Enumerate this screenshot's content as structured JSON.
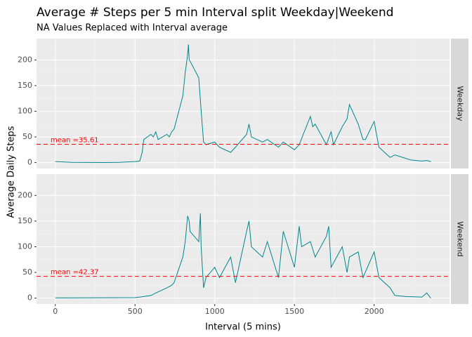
{
  "chart_data": {
    "type": "line",
    "title": "Average # Steps per 5 min Interval split Weekday|Weekend",
    "subtitle": "NA Values Replaced with Interval average",
    "xlabel": "Interval (5 mins)",
    "ylabel": "Average Daily Steps",
    "xlim": [
      -117.75,
      2472.75
    ],
    "ylim": [
      -11.5,
      241.5
    ],
    "xticks": [
      0,
      500,
      1000,
      1500,
      2000
    ],
    "yticks": [
      0,
      50,
      100,
      150,
      200
    ],
    "x_minor": [
      250,
      750,
      1250,
      1750,
      2250
    ],
    "y_minor": [
      25,
      75,
      125,
      175,
      225
    ],
    "grid": true,
    "panels": [
      {
        "strip": "Weekday",
        "color": "#00868b",
        "x": [
          0,
          100,
          200,
          300,
          400,
          500,
          530,
          545,
          555,
          600,
          615,
          630,
          645,
          700,
          715,
          730,
          745,
          800,
          815,
          830,
          835,
          840,
          850,
          900,
          915,
          930,
          945,
          1000,
          1030,
          1100,
          1130,
          1200,
          1215,
          1230,
          1300,
          1330,
          1400,
          1430,
          1500,
          1530,
          1600,
          1615,
          1630,
          1700,
          1730,
          1745,
          1800,
          1830,
          1845,
          1900,
          1930,
          1945,
          2000,
          2030,
          2100,
          2130,
          2200,
          2230,
          2300,
          2330,
          2355
        ],
        "values": [
          2,
          0.5,
          0.3,
          0.2,
          0.5,
          2,
          3,
          20,
          45,
          55,
          50,
          60,
          45,
          55,
          50,
          60,
          65,
          130,
          175,
          210,
          230,
          200,
          195,
          165,
          100,
          40,
          35,
          40,
          30,
          20,
          30,
          55,
          75,
          50,
          40,
          45,
          30,
          40,
          25,
          35,
          90,
          70,
          75,
          35,
          60,
          35,
          70,
          85,
          113,
          75,
          45,
          45,
          80,
          30,
          10,
          15,
          8,
          5,
          3,
          4,
          2
        ],
        "mean": {
          "value": 35.61,
          "label": "mean =35.61",
          "color": "#ff0000"
        }
      },
      {
        "strip": "Weekend",
        "color": "#00868b",
        "x": [
          0,
          500,
          530,
          600,
          630,
          700,
          730,
          745,
          800,
          815,
          830,
          840,
          845,
          900,
          910,
          915,
          930,
          945,
          1000,
          1030,
          1100,
          1130,
          1200,
          1215,
          1230,
          1300,
          1330,
          1400,
          1430,
          1500,
          1530,
          1545,
          1600,
          1630,
          1700,
          1715,
          1730,
          1800,
          1830,
          1845,
          1900,
          1930,
          2000,
          2030,
          2100,
          2130,
          2200,
          2300,
          2330,
          2355
        ],
        "values": [
          0.5,
          1,
          2,
          5,
          10,
          20,
          25,
          30,
          80,
          110,
          160,
          150,
          130,
          110,
          165,
          100,
          20,
          40,
          60,
          40,
          80,
          30,
          130,
          150,
          100,
          80,
          110,
          40,
          130,
          60,
          140,
          100,
          110,
          80,
          120,
          140,
          60,
          100,
          50,
          80,
          90,
          40,
          90,
          40,
          20,
          5,
          3,
          2,
          10,
          0
        ],
        "mean": {
          "value": 42.37,
          "label": "mean =42.37",
          "color": "#ff0000"
        }
      }
    ]
  }
}
